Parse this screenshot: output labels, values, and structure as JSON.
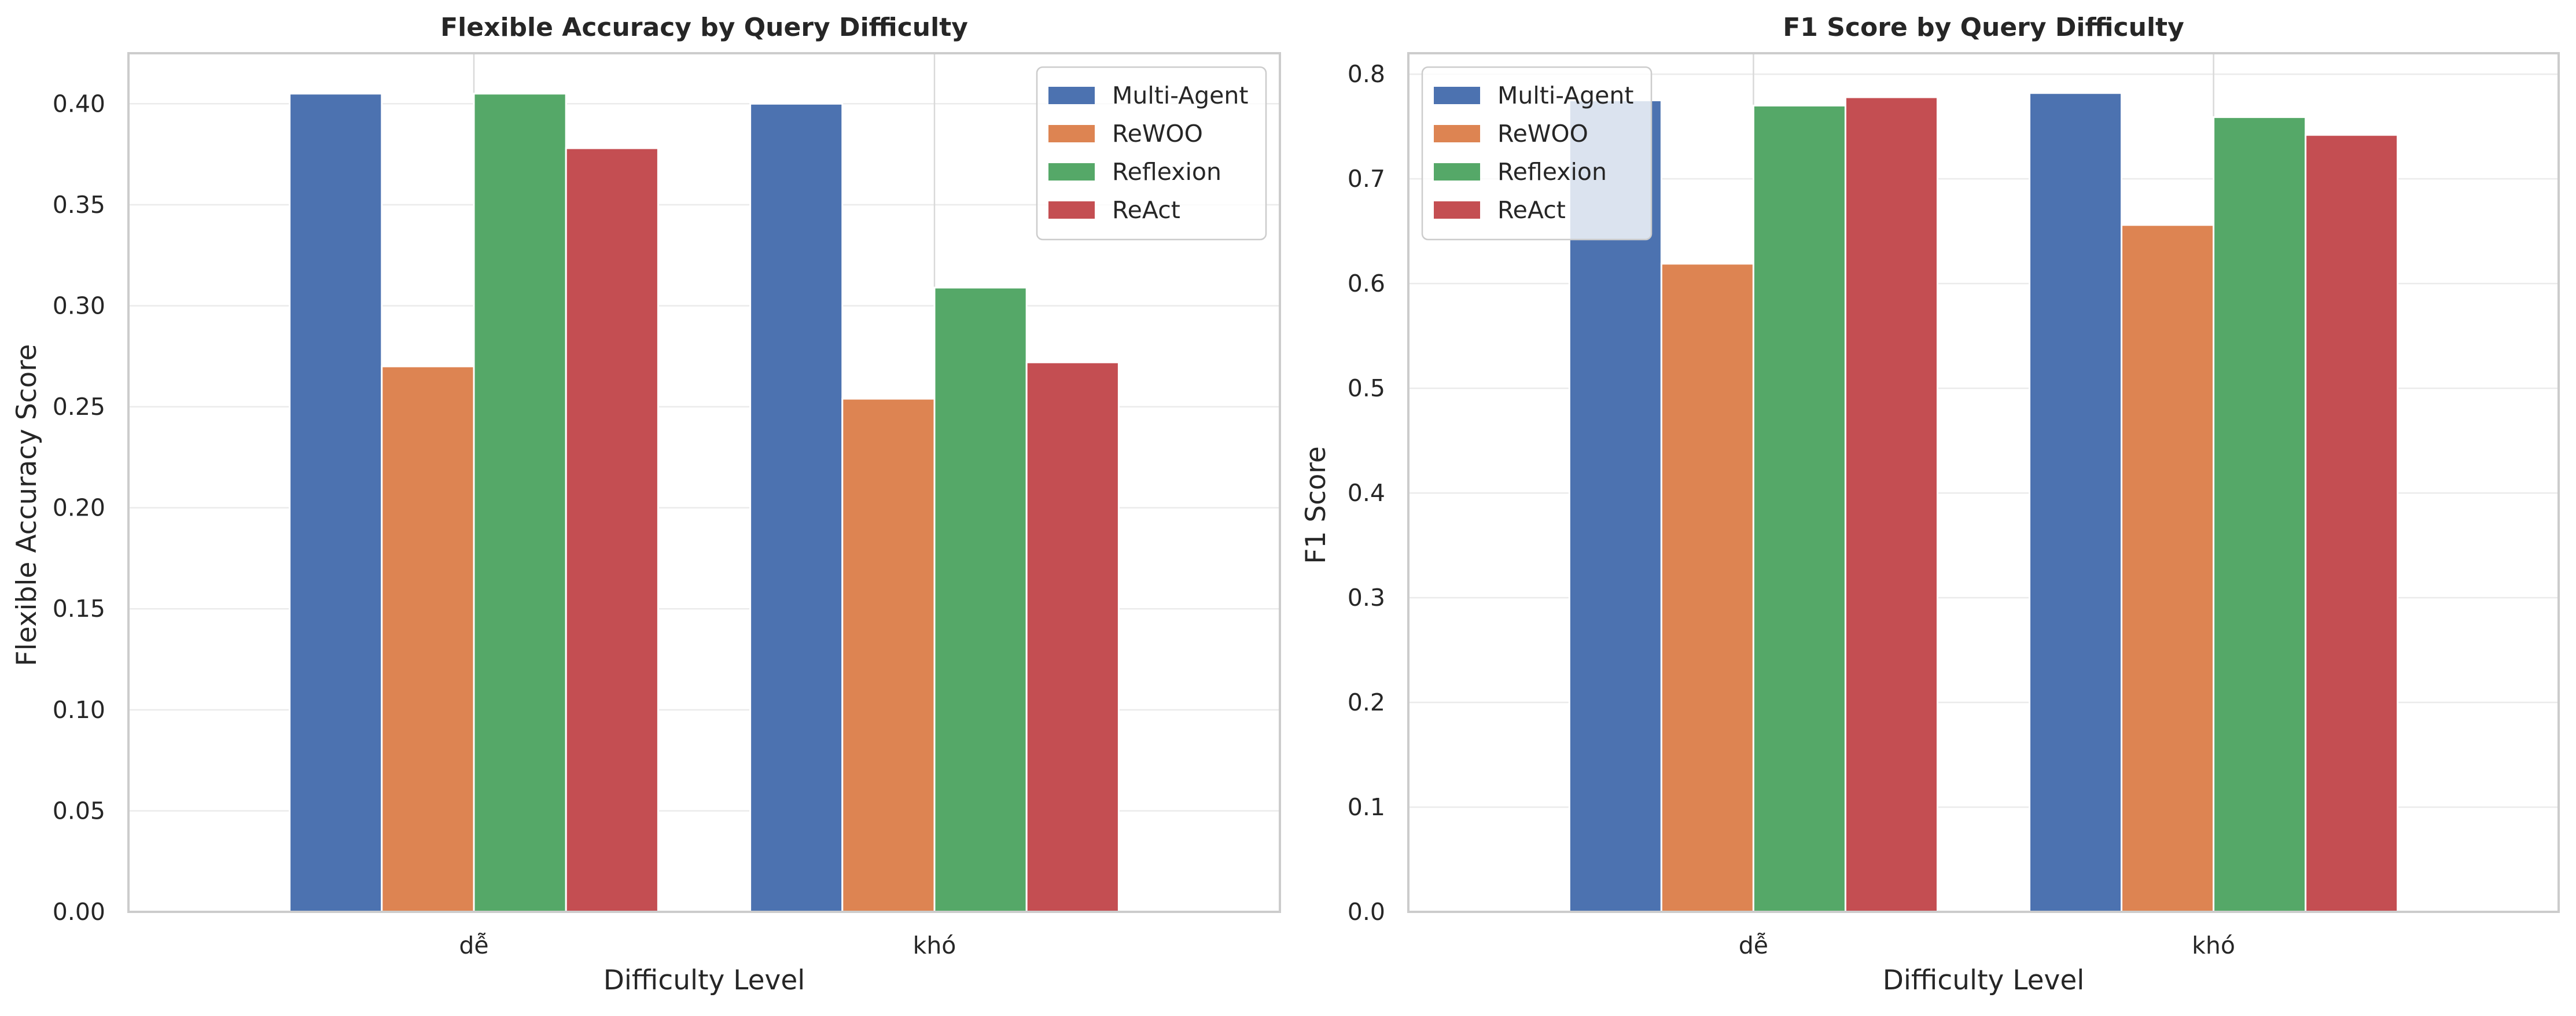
{
  "chart_data": [
    {
      "type": "bar",
      "title": "Flexible Accuracy by Query Difficulty",
      "xlabel": "Difficulty Level",
      "ylabel": "Flexible Accuracy Score",
      "categories": [
        "dễ",
        "khó"
      ],
      "ylim": [
        0,
        0.425
      ],
      "yticks": [
        "0.00",
        "0.05",
        "0.10",
        "0.15",
        "0.20",
        "0.25",
        "0.30",
        "0.35",
        "0.40"
      ],
      "grid": true,
      "legend": "upper right",
      "series": [
        {
          "name": "Multi-Agent",
          "color": "#4c72b0",
          "values": [
            0.405,
            0.4
          ]
        },
        {
          "name": "ReWOO",
          "color": "#dd8452",
          "values": [
            0.27,
            0.254
          ]
        },
        {
          "name": "Reflexion",
          "color": "#55a868",
          "values": [
            0.405,
            0.309
          ]
        },
        {
          "name": "ReAct",
          "color": "#c44e52",
          "values": [
            0.378,
            0.272
          ]
        }
      ]
    },
    {
      "type": "bar",
      "title": "F1 Score by Query Difficulty",
      "xlabel": "Difficulty Level",
      "ylabel": "F1 Score",
      "categories": [
        "dễ",
        "khó"
      ],
      "ylim": [
        0,
        0.82
      ],
      "yticks": [
        "0.0",
        "0.1",
        "0.2",
        "0.3",
        "0.4",
        "0.5",
        "0.6",
        "0.7",
        "0.8"
      ],
      "grid": true,
      "legend": "upper left",
      "series": [
        {
          "name": "Multi-Agent",
          "color": "#4c72b0",
          "values": [
            0.775,
            0.782
          ]
        },
        {
          "name": "ReWOO",
          "color": "#dd8452",
          "values": [
            0.619,
            0.656
          ]
        },
        {
          "name": "Reflexion",
          "color": "#55a868",
          "values": [
            0.77,
            0.759
          ]
        },
        {
          "name": "ReAct",
          "color": "#c44e52",
          "values": [
            0.778,
            0.742
          ]
        }
      ]
    }
  ]
}
